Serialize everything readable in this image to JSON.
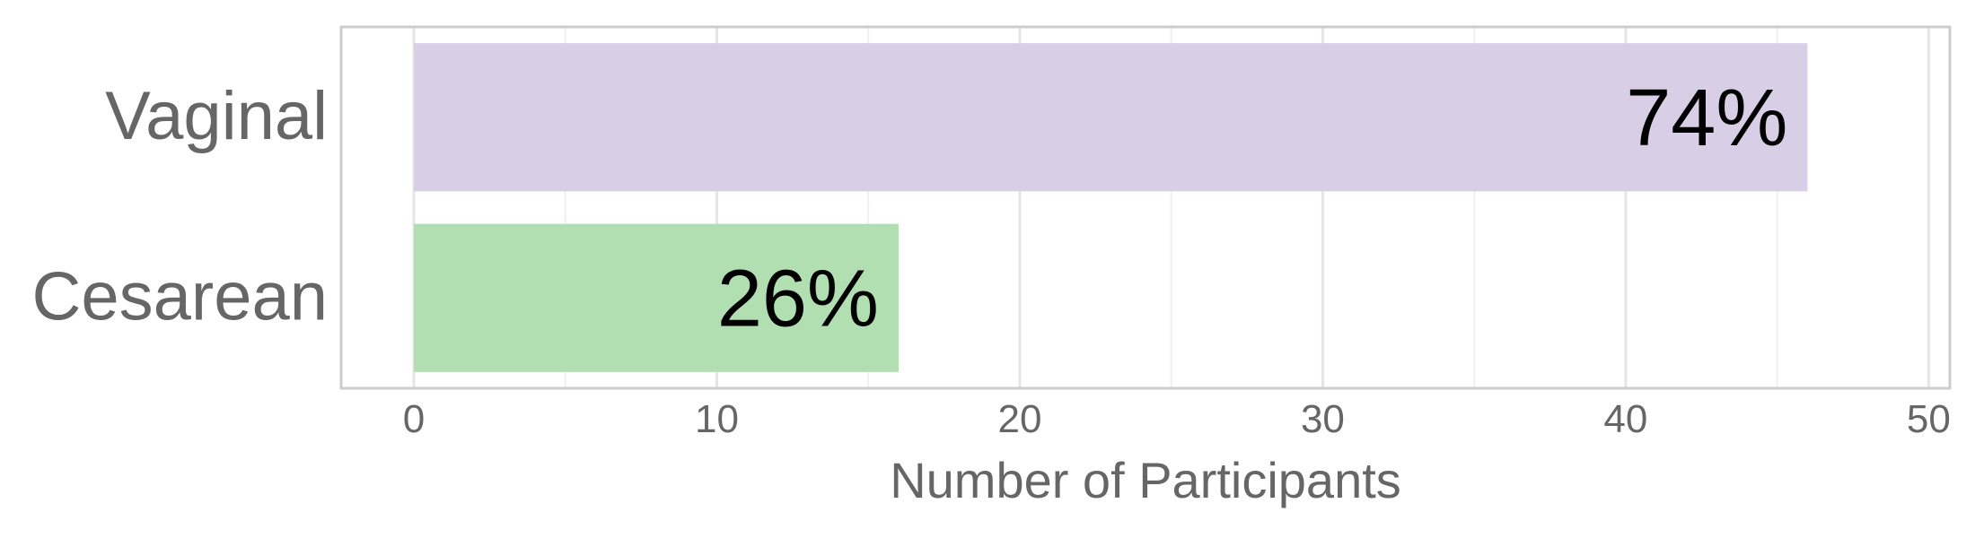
{
  "chart_data": {
    "type": "bar",
    "orientation": "horizontal",
    "categories": [
      "Vaginal",
      "Cesarean"
    ],
    "values": [
      46,
      16
    ],
    "data_labels": [
      "74%",
      "26%"
    ],
    "bar_colors": [
      "#d8cfe6",
      "#b2dfb2"
    ],
    "xlabel": "Number of Participants",
    "ylabel": "",
    "title": "",
    "xlim": [
      -2.4,
      50.7
    ],
    "x_ticks": [
      0,
      10,
      20,
      30,
      40,
      50
    ],
    "grid": true,
    "legend": "none",
    "colors": {
      "panel_border": "#cccccc",
      "grid_major": "#e5e5e5",
      "grid_minor": "#f0f0f0",
      "axis_text": "#666666"
    }
  }
}
